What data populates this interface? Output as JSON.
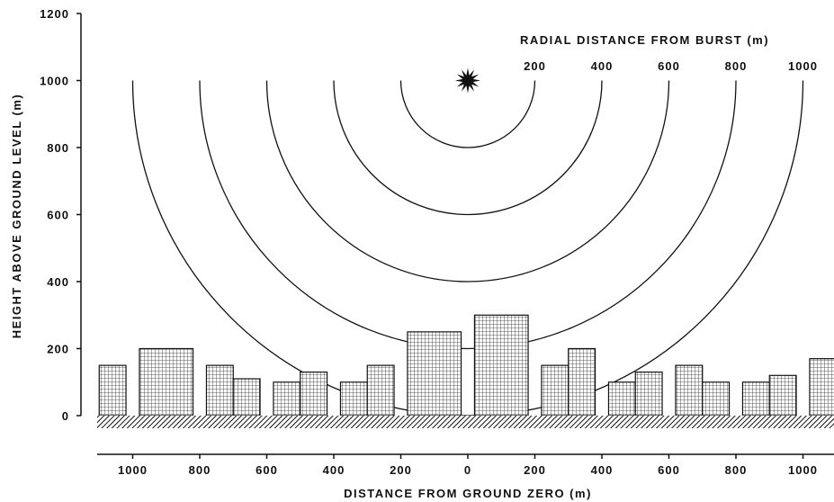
{
  "chart_data": {
    "type": "diagram",
    "y_axis": {
      "label": "HEIGHT ABOVE GROUND LEVEL (m)",
      "ticks": [
        "1200",
        "1000",
        "800",
        "600",
        "400",
        "200",
        "0"
      ],
      "tick_values": [
        1200,
        1000,
        800,
        600,
        400,
        200,
        0
      ],
      "range": [
        0,
        1200
      ]
    },
    "x_axis": {
      "label": "DISTANCE FROM GROUND ZERO (m)",
      "ticks": [
        "1000",
        "800",
        "600",
        "400",
        "200",
        "0",
        "200",
        "400",
        "600",
        "800",
        "1000"
      ],
      "tick_values": [
        -1000,
        -800,
        -600,
        -400,
        -200,
        0,
        200,
        400,
        600,
        800,
        1000
      ]
    },
    "radial_legend": {
      "title": "RADIAL DISTANCE FROM BURST (m)",
      "labels": [
        "200",
        "400",
        "600",
        "800",
        "1000"
      ]
    },
    "burst": {
      "x": 0,
      "height": 1000
    },
    "radii": [
      200,
      400,
      600,
      800,
      1000
    ],
    "buildings": [
      {
        "x_start": -1100,
        "x_end": -1020,
        "height": 150
      },
      {
        "x_start": -980,
        "x_end": -820,
        "height": 200
      },
      {
        "x_start": -780,
        "x_end": -700,
        "height": 150
      },
      {
        "x_start": -700,
        "x_end": -620,
        "height": 110
      },
      {
        "x_start": -580,
        "x_end": -500,
        "height": 100
      },
      {
        "x_start": -500,
        "x_end": -420,
        "height": 130
      },
      {
        "x_start": -380,
        "x_end": -300,
        "height": 100
      },
      {
        "x_start": -300,
        "x_end": -220,
        "height": 150
      },
      {
        "x_start": -180,
        "x_end": -20,
        "height": 250
      },
      {
        "x_start": 20,
        "x_end": 180,
        "height": 300
      },
      {
        "x_start": 220,
        "x_end": 300,
        "height": 150
      },
      {
        "x_start": 300,
        "x_end": 380,
        "height": 200
      },
      {
        "x_start": 420,
        "x_end": 500,
        "height": 100
      },
      {
        "x_start": 500,
        "x_end": 580,
        "height": 130
      },
      {
        "x_start": 620,
        "x_end": 700,
        "height": 150
      },
      {
        "x_start": 700,
        "x_end": 780,
        "height": 100
      },
      {
        "x_start": 820,
        "x_end": 900,
        "height": 100
      },
      {
        "x_start": 900,
        "x_end": 980,
        "height": 120
      },
      {
        "x_start": 1020,
        "x_end": 1100,
        "height": 170
      }
    ]
  }
}
